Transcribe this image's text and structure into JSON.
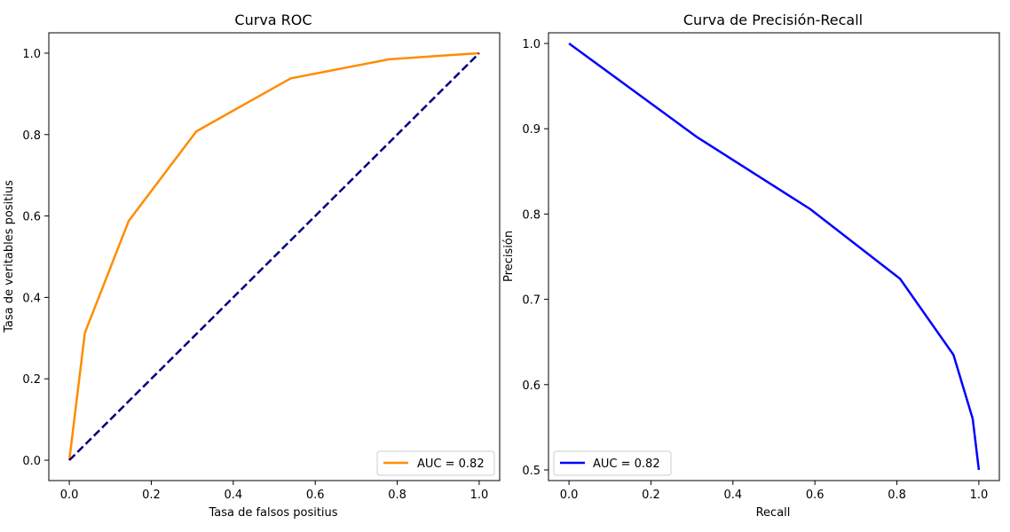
{
  "chart_data": [
    {
      "type": "line",
      "title": "Curva ROC",
      "xlabel": "Tasa de falsos positius",
      "ylabel": "Tasa de veritables positius",
      "xlim": [
        -0.05,
        1.05
      ],
      "ylim": [
        -0.05,
        1.05
      ],
      "xticks": [
        "0.0",
        "0.2",
        "0.4",
        "0.6",
        "0.8",
        "1.0"
      ],
      "yticks": [
        "0.0",
        "0.2",
        "0.4",
        "0.6",
        "0.8",
        "1.0"
      ],
      "legend_position": "lower-right",
      "series": [
        {
          "name": "AUC = 0.82",
          "color": "#ff8c00",
          "style": "solid",
          "x": [
            0.0,
            0.038,
            0.145,
            0.31,
            0.54,
            0.78,
            1.0
          ],
          "y": [
            0.0,
            0.313,
            0.588,
            0.808,
            0.938,
            0.985,
            1.0
          ]
        },
        {
          "name": "",
          "color": "#000080",
          "style": "dashed",
          "x": [
            0.0,
            1.0
          ],
          "y": [
            0.0,
            1.0
          ]
        }
      ]
    },
    {
      "type": "line",
      "title": "Curva de Precisión-Recall",
      "xlabel": "Recall",
      "ylabel": "Precisión",
      "xlim": [
        -0.05,
        1.05
      ],
      "ylim": [
        0.4875,
        1.0125
      ],
      "xticks": [
        "0.0",
        "0.2",
        "0.4",
        "0.6",
        "0.8",
        "1.0"
      ],
      "yticks": [
        "0.5",
        "0.6",
        "0.7",
        "0.8",
        "0.9",
        "1.0"
      ],
      "legend_position": "lower-left",
      "series": [
        {
          "name": "AUC = 0.82",
          "color": "#0000ff",
          "style": "solid",
          "x": [
            0.0,
            0.313,
            0.588,
            0.808,
            0.938,
            0.985,
            1.0
          ],
          "y": [
            1.0,
            0.89,
            0.806,
            0.724,
            0.635,
            0.56,
            0.5
          ]
        }
      ]
    }
  ]
}
